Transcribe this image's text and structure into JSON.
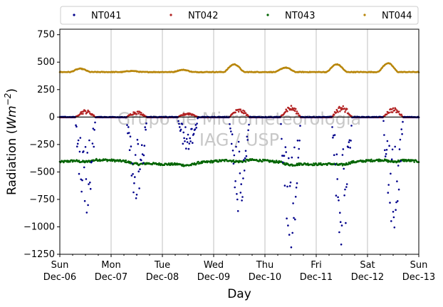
{
  "chart_data": {
    "type": "scatter",
    "xlabel": "Day",
    "ylabel": "Radiation (Wm^-2)",
    "ylim": [
      -1250,
      800
    ],
    "y_ticks": [
      -1250,
      -1000,
      -750,
      -500,
      -250,
      0,
      250,
      500,
      750
    ],
    "x_ticks": [
      {
        "day": 0,
        "top": "Sun",
        "bottom": "Dec-06"
      },
      {
        "day": 1,
        "top": "Mon",
        "bottom": "Dec-07"
      },
      {
        "day": 2,
        "top": "Tue",
        "bottom": "Dec-08"
      },
      {
        "day": 3,
        "top": "Wed",
        "bottom": "Dec-09"
      },
      {
        "day": 4,
        "top": "Thu",
        "bottom": "Dec-10"
      },
      {
        "day": 5,
        "top": "Fri",
        "bottom": "Dec-11"
      },
      {
        "day": 6,
        "top": "Sat",
        "bottom": "Dec-12"
      },
      {
        "day": 7,
        "top": "Sun",
        "bottom": "Dec-13"
      }
    ],
    "xlim_days": [
      0,
      7
    ],
    "grid": "vertical",
    "legend_position": "top",
    "watermark": [
      "Grupo de Micrometeorologia",
      "IAG / USP"
    ],
    "series": [
      {
        "name": "NT041",
        "color": "#00008b",
        "description": "daytime negative peaks",
        "daily_minimum": [
          -970,
          -790,
          -380,
          -900,
          -1230,
          -1180,
          -1080
        ]
      },
      {
        "name": "NT042",
        "color": "#b22222",
        "description": "near zero with small daytime bumps",
        "daily_maximum": [
          70,
          60,
          45,
          80,
          110,
          110,
          90
        ]
      },
      {
        "name": "NT043",
        "color": "#006400",
        "description": "around -400 with small variation",
        "baseline": -410
      },
      {
        "name": "NT044",
        "color": "#b8860b",
        "description": "around 400-480",
        "baseline": 410,
        "daily_maximum": [
          440,
          420,
          430,
          480,
          450,
          480,
          490
        ]
      }
    ]
  }
}
